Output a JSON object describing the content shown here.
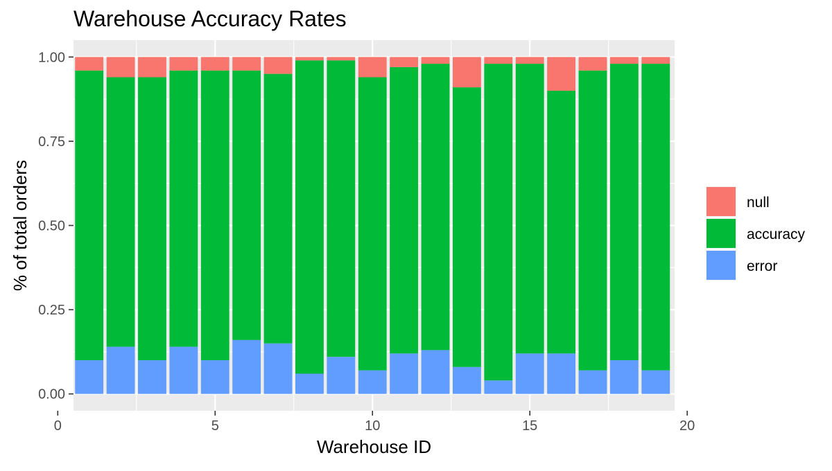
{
  "chart_data": {
    "type": "bar",
    "stacked": true,
    "title": "Warehouse Accuracy Rates",
    "xlabel": "Warehouse ID",
    "ylabel": "% of total orders",
    "xlim": [
      0,
      20
    ],
    "ylim": [
      0,
      1
    ],
    "x_ticks": [
      "0",
      "5",
      "10",
      "15",
      "20"
    ],
    "y_ticks": [
      "0.00",
      "0.25",
      "0.50",
      "0.75",
      "1.00"
    ],
    "grid": true,
    "legend_position": "right",
    "categories": [
      1,
      2,
      3,
      4,
      5,
      6,
      7,
      8,
      9,
      10,
      11,
      12,
      13,
      14,
      15,
      16,
      17,
      18,
      19
    ],
    "series": [
      {
        "name": "error",
        "color": "#619CFF",
        "values": [
          0.1,
          0.14,
          0.1,
          0.14,
          0.1,
          0.16,
          0.15,
          0.06,
          0.11,
          0.07,
          0.12,
          0.13,
          0.08,
          0.04,
          0.12,
          0.12,
          0.07,
          0.1,
          0.07
        ]
      },
      {
        "name": "accuracy",
        "color": "#00BA38",
        "values": [
          0.86,
          0.8,
          0.84,
          0.82,
          0.86,
          0.8,
          0.8,
          0.93,
          0.88,
          0.87,
          0.85,
          0.85,
          0.83,
          0.94,
          0.86,
          0.78,
          0.89,
          0.88,
          0.91
        ]
      },
      {
        "name": "null",
        "color": "#F8766D",
        "values": [
          0.04,
          0.06,
          0.06,
          0.04,
          0.04,
          0.04,
          0.05,
          0.01,
          0.01,
          0.06,
          0.03,
          0.02,
          0.09,
          0.02,
          0.02,
          0.1,
          0.04,
          0.02,
          0.02
        ]
      }
    ],
    "legend_order": [
      "null",
      "accuracy",
      "error"
    ]
  }
}
